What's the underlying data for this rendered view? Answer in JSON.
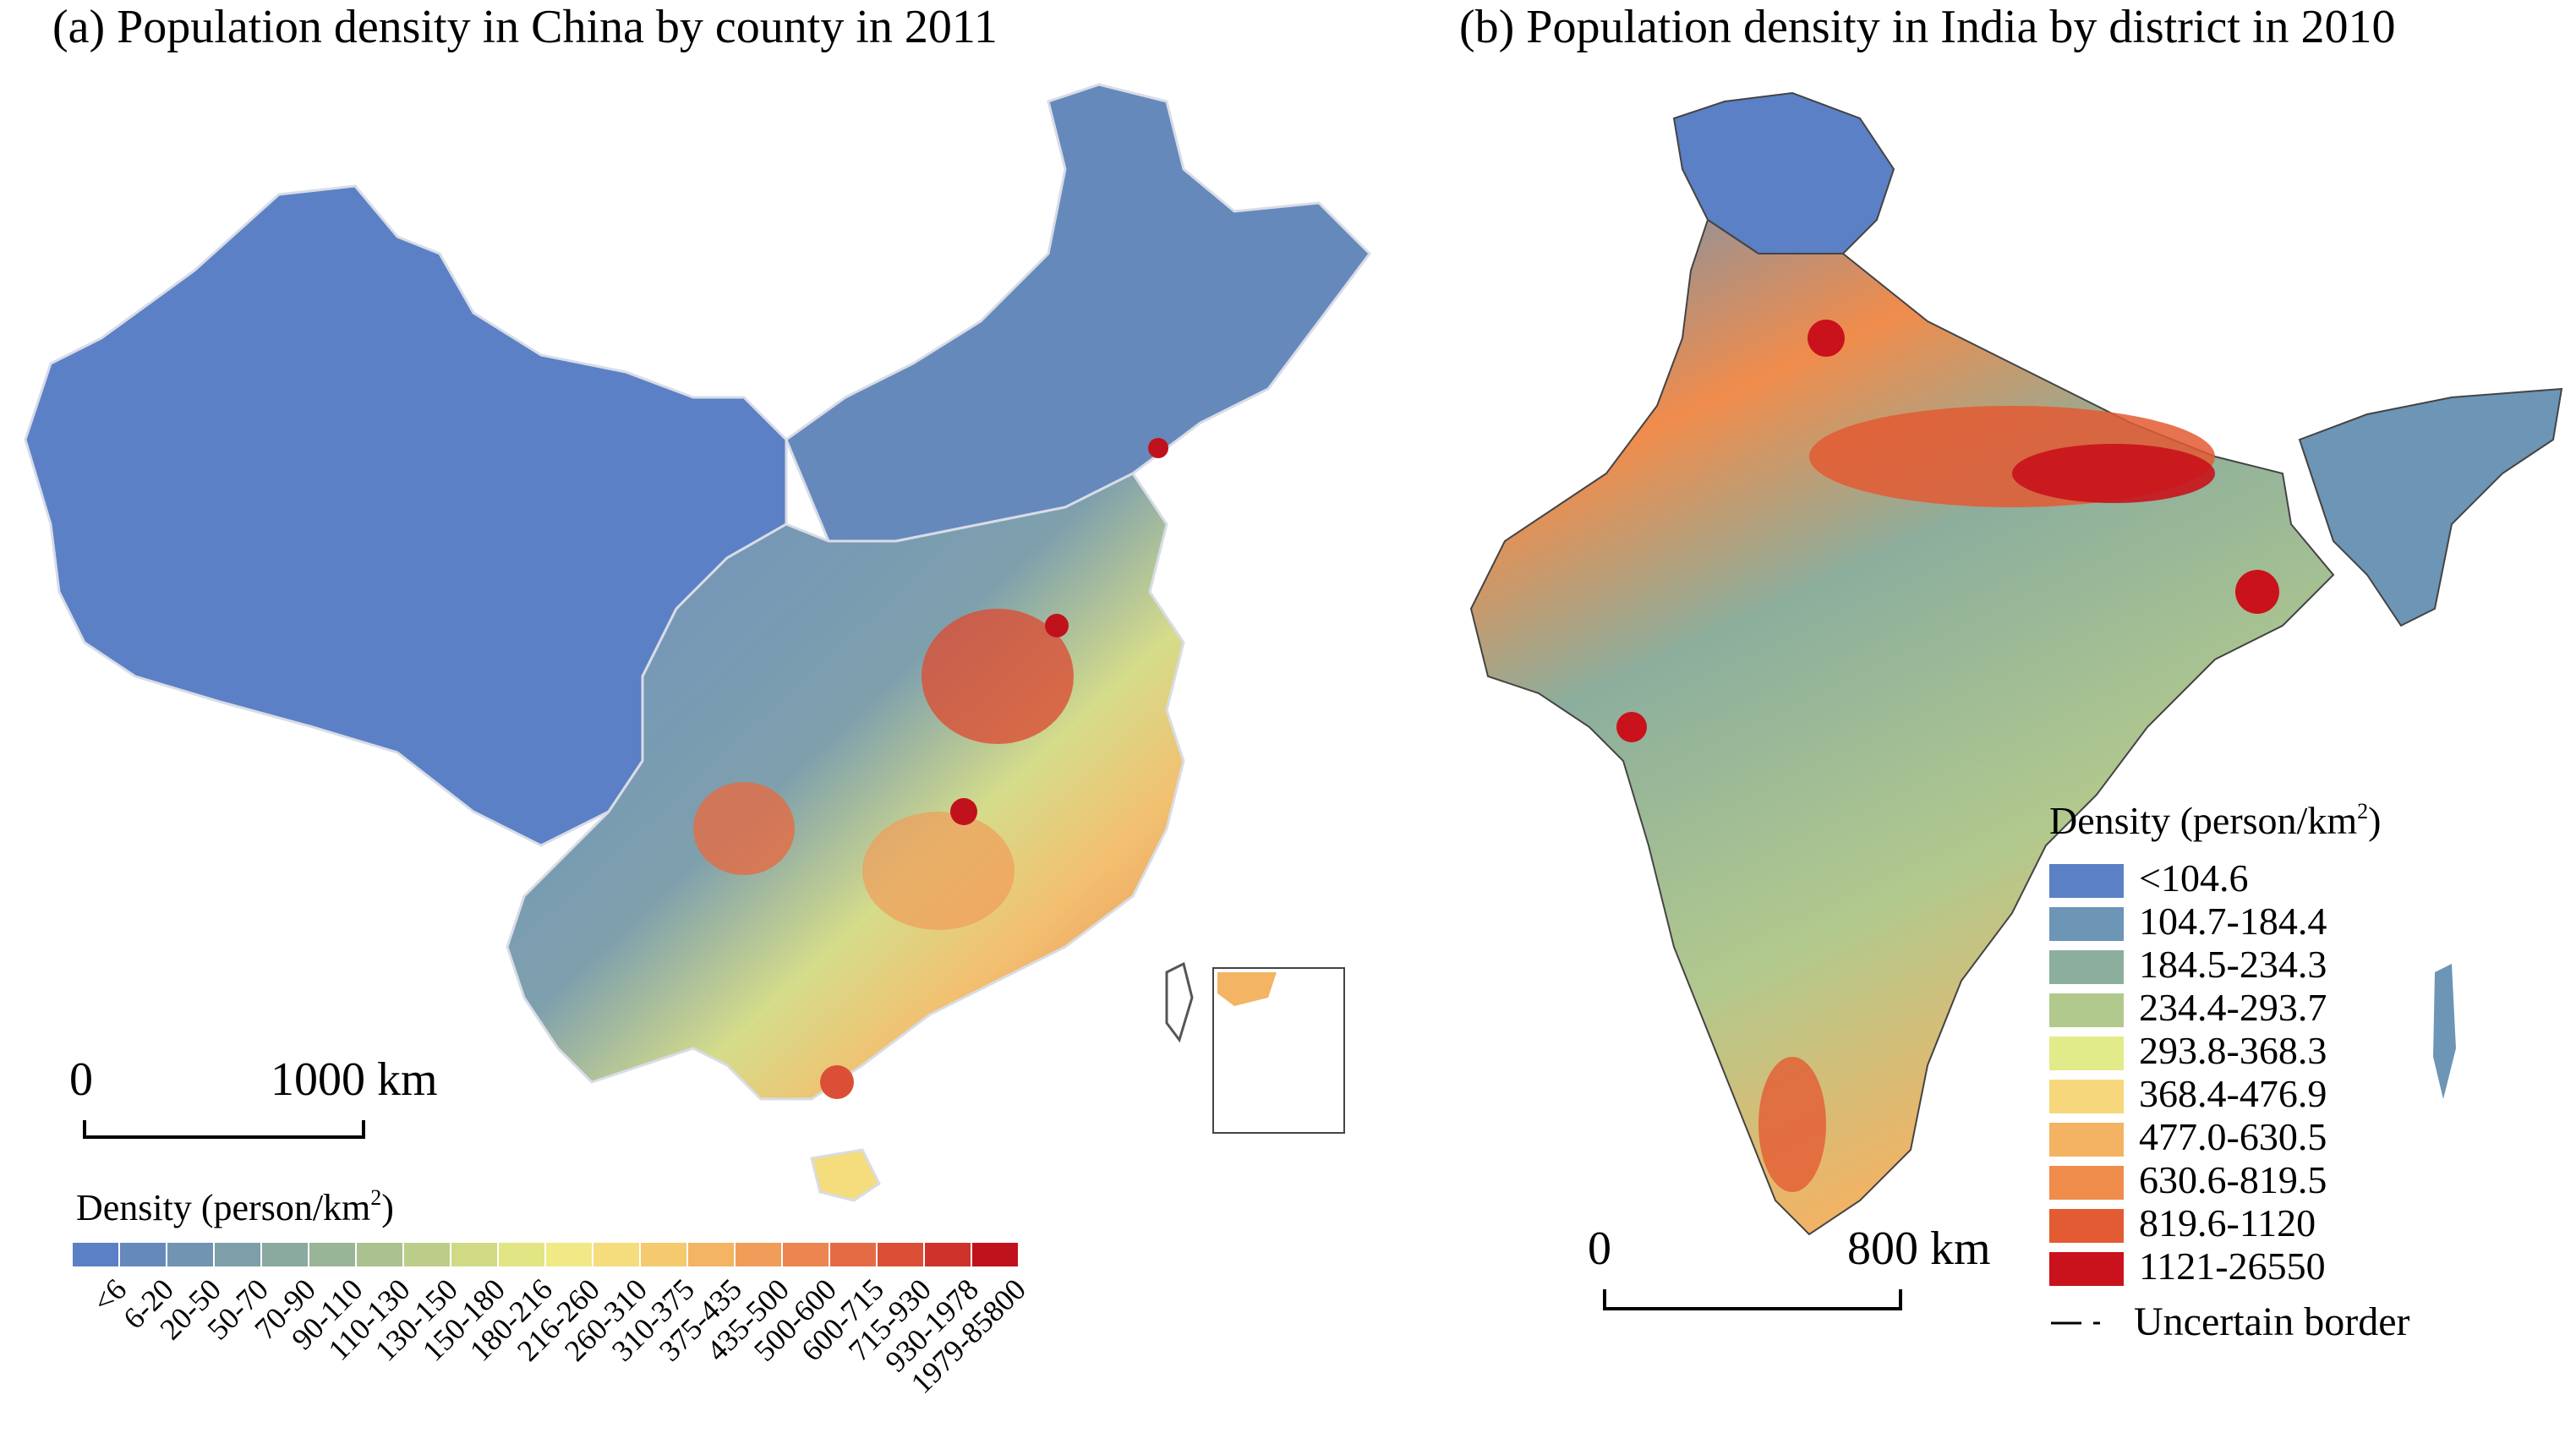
{
  "panel_a": {
    "title": "(a) Population density in China by county in 2011",
    "scale_start": "0",
    "scale_end": "1000 km",
    "legend_title_main": "Density (person/km",
    "legend_title_sup": "2",
    "legend_title_close": ")",
    "classes": [
      {
        "label": "<6",
        "color": "#5b80c5"
      },
      {
        "label": "6-20",
        "color": "#6689bc"
      },
      {
        "label": "20-50",
        "color": "#7094b2"
      },
      {
        "label": "50-70",
        "color": "#7c9fa9"
      },
      {
        "label": "70-90",
        "color": "#8aaa9f"
      },
      {
        "label": "90-110",
        "color": "#99b597"
      },
      {
        "label": "110-130",
        "color": "#aac18f"
      },
      {
        "label": "130-150",
        "color": "#bccd89"
      },
      {
        "label": "150-180",
        "color": "#d0da85"
      },
      {
        "label": "180-216",
        "color": "#e2e584"
      },
      {
        "label": "216-260",
        "color": "#f0e986"
      },
      {
        "label": "260-310",
        "color": "#f5dc7c"
      },
      {
        "label": "310-375",
        "color": "#f5c96d"
      },
      {
        "label": "375-435",
        "color": "#f3b463"
      },
      {
        "label": "435-500",
        "color": "#f19d5a"
      },
      {
        "label": "500-600",
        "color": "#ec8550"
      },
      {
        "label": "600-715",
        "color": "#e56b44"
      },
      {
        "label": "715-930",
        "color": "#db4f36"
      },
      {
        "label": "930-1978",
        "color": "#cf322a"
      },
      {
        "label": "1979-85800",
        "color": "#c0121c"
      }
    ]
  },
  "panel_b": {
    "title": "(b) Population density in India by district in 2010",
    "scale_start": "0",
    "scale_end": "800 km",
    "legend_title_main": "Density (person/km",
    "legend_title_sup": "2",
    "legend_title_close": ")",
    "classes": [
      {
        "label": "<104.6",
        "color": "#5b80c5"
      },
      {
        "label": "104.7-184.4",
        "color": "#6d95b6"
      },
      {
        "label": "184.5-234.3",
        "color": "#8cae9d"
      },
      {
        "label": "234.4-293.7",
        "color": "#b2c98d"
      },
      {
        "label": "293.8-368.3",
        "color": "#e1eb8a"
      },
      {
        "label": "368.4-476.9",
        "color": "#f6d77c"
      },
      {
        "label": "477.0-630.5",
        "color": "#f4b263"
      },
      {
        "label": "630.6-819.5",
        "color": "#f08c4c"
      },
      {
        "label": "819.6-1120",
        "color": "#e35b33"
      },
      {
        "label": "1121-26550",
        "color": "#c9121b"
      }
    ],
    "uncertain_border": "Uncertain border"
  }
}
